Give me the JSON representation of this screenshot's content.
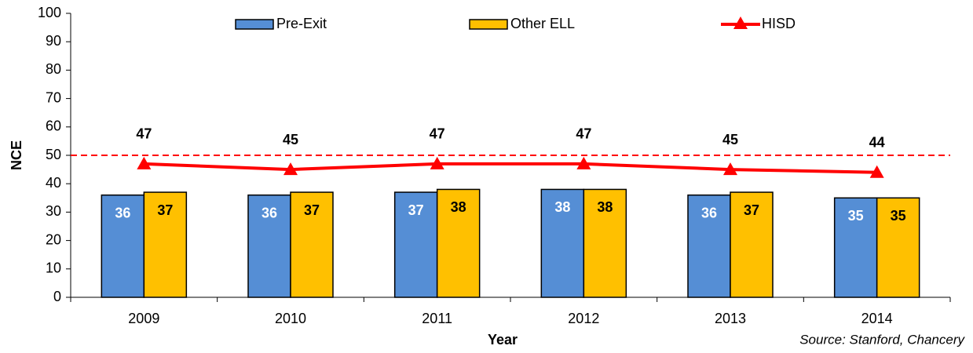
{
  "chart_data": {
    "type": "bar",
    "categories": [
      "2009",
      "2010",
      "2011",
      "2012",
      "2013",
      "2014"
    ],
    "series": [
      {
        "name": "Pre-Exit",
        "type": "bar",
        "color": "#558ed5",
        "label_color": "#ffffff",
        "values": [
          36,
          36,
          37,
          38,
          36,
          35
        ]
      },
      {
        "name": "Other ELL",
        "type": "bar",
        "color": "#ffc000",
        "label_color": "#000000",
        "values": [
          37,
          37,
          38,
          38,
          37,
          35
        ]
      },
      {
        "name": "HISD",
        "type": "line",
        "color": "#ff0000",
        "label_color": "#000000",
        "values": [
          47,
          45,
          47,
          47,
          45,
          44
        ]
      }
    ],
    "reference_line": 50,
    "reference_color": "#ff0000",
    "ylim": [
      0,
      100
    ],
    "yticks": [
      0,
      10,
      20,
      30,
      40,
      50,
      60,
      70,
      80,
      90,
      100
    ],
    "ylabel": "NCE",
    "xlabel": "Year",
    "source": "Source: Stanford, Chancery",
    "legend": "top",
    "grid": false
  }
}
